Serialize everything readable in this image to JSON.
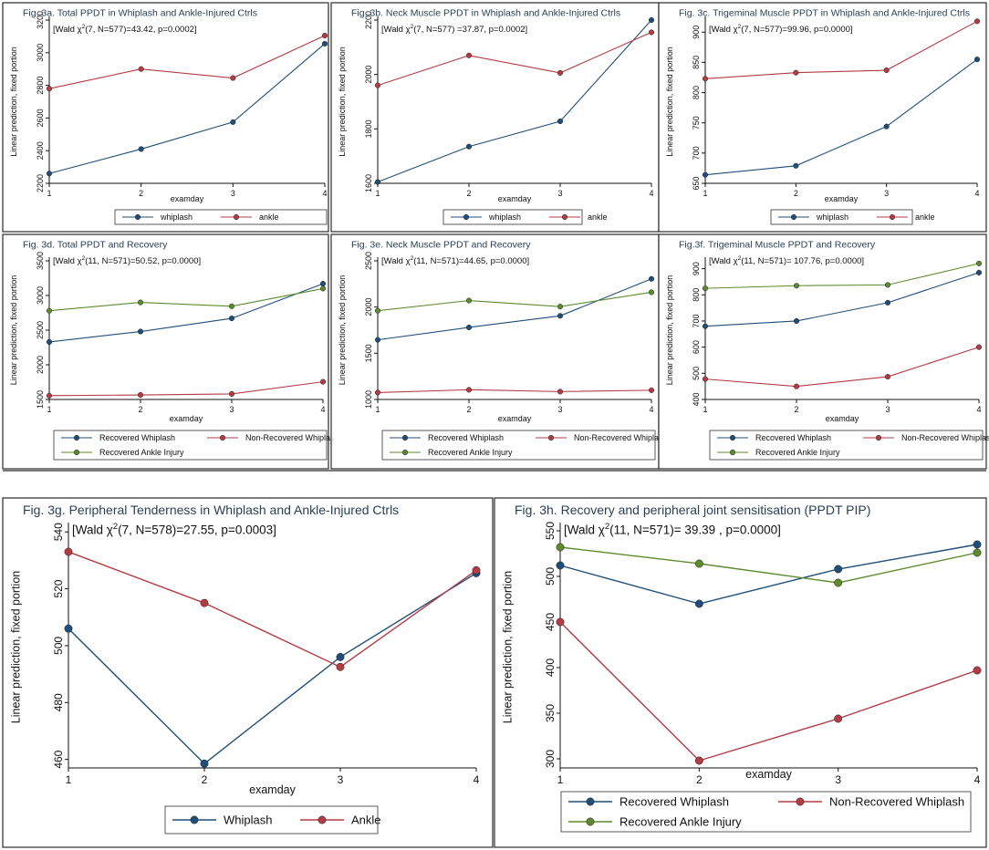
{
  "figure_colors": {
    "whiplash": "#1f4e79",
    "recovered_whiplash": "#1f4e79",
    "ankle": "#b33b44",
    "non_recovered_whiplash": "#b33b44",
    "recovered_ankle": "#5d8a2e"
  },
  "chart_data": [
    {
      "id": "3a",
      "type": "line",
      "title": "Fig. 3a. Total PPDT in Whiplash and Ankle-Injured Ctrls",
      "stat": {
        "pre": "[Wald χ",
        "sup": "2",
        "post": "(7, N=577)=43.42, p=0.0002]"
      },
      "xlabel": "examday",
      "ylabel": "Linear prediction, fixed portion",
      "x": [
        1,
        2,
        3,
        4
      ],
      "yticks": [
        "2200",
        "2400",
        "2600",
        "2800",
        "3000",
        "3200"
      ],
      "ylim": [
        2200,
        3200
      ],
      "series": [
        {
          "name": "whiplash",
          "color": "#1f4e79",
          "values": [
            2260,
            2410,
            2575,
            3055
          ]
        },
        {
          "name": "ankle",
          "color": "#b33b44",
          "values": [
            2780,
            2900,
            2845,
            3105
          ]
        }
      ]
    },
    {
      "id": "3b",
      "type": "line",
      "title": "Fig. 3b. Neck Muscle PPDT in Whiplash and Ankle-Injured Ctrls",
      "stat": {
        "pre": "[Wald χ",
        "sup": "2",
        "post": "(7, N=577) =37.87, p=0.0002]"
      },
      "xlabel": "examday",
      "ylabel": "Linear prediction, fixed portion",
      "x": [
        1,
        2,
        3,
        4
      ],
      "yticks": [
        "1600",
        "1800",
        "2000",
        "2200"
      ],
      "ylim": [
        1600,
        2200
      ],
      "series": [
        {
          "name": "whiplash",
          "color": "#1f4e79",
          "values": [
            1605,
            1735,
            1828,
            2200
          ]
        },
        {
          "name": "ankle",
          "color": "#b33b44",
          "values": [
            1960,
            2070,
            2006,
            2155
          ]
        }
      ]
    },
    {
      "id": "3c",
      "type": "line",
      "title": "Fig. 3c. Trigeminal Muscle PPDT in Whiplash and Ankle-Injured Ctrls",
      "stat": {
        "pre": "[Wald χ",
        "sup": "2",
        "post": "(7, N=577)=99.96, p=0.0000]"
      },
      "xlabel": "examday",
      "ylabel": "Linear prediction, fixed portion",
      "x": [
        1,
        2,
        3,
        4
      ],
      "yticks": [
        "650",
        "700",
        "750",
        "800",
        "850",
        "900"
      ],
      "ylim": [
        650,
        920
      ],
      "series": [
        {
          "name": "whiplash",
          "color": "#1f4e79",
          "values": [
            664,
            679,
            744,
            855
          ]
        },
        {
          "name": "ankle",
          "color": "#b33b44",
          "values": [
            823,
            833,
            837,
            918
          ]
        }
      ]
    },
    {
      "id": "3d",
      "type": "line",
      "title": "Fig. 3d. Total PPDT and Recovery",
      "stat": {
        "pre": "[Wald χ",
        "sup": "2",
        "post": "(11, N=571)=50.52, p=0.0000]"
      },
      "xlabel": "examday",
      "ylabel": "Linear prediction, fixed portion",
      "x": [
        1,
        2,
        3,
        4
      ],
      "yticks": [
        "1500",
        "2000",
        "2500",
        "3000",
        "3500"
      ],
      "ylim": [
        1500,
        3500
      ],
      "series": [
        {
          "name": "Recovered Whiplash",
          "color": "#1f4e79",
          "values": [
            2330,
            2480,
            2670,
            3170
          ]
        },
        {
          "name": "Non-Recovered Whiplash",
          "color": "#b33b44",
          "values": [
            1555,
            1565,
            1580,
            1755
          ]
        },
        {
          "name": "Recovered Ankle Injury",
          "color": "#5d8a2e",
          "values": [
            2780,
            2900,
            2845,
            3100
          ]
        }
      ]
    },
    {
      "id": "3e",
      "type": "line",
      "title": "Fig. 3e. Neck Muscle PPDT and Recovery",
      "stat": {
        "pre": "[Wald χ",
        "sup": "2",
        "post": "(11, N=571)=44.65, p=0.0000]"
      },
      "xlabel": "examday",
      "ylabel": "Linear prediction, fixed portion",
      "x": [
        1,
        2,
        3,
        4
      ],
      "yticks": [
        "1000",
        "1500",
        "2000",
        "2500"
      ],
      "ylim": [
        1000,
        2500
      ],
      "series": [
        {
          "name": "Recovered Whiplash",
          "color": "#1f4e79",
          "values": [
            1645,
            1780,
            1905,
            2305
          ]
        },
        {
          "name": "Non-Recovered Whiplash",
          "color": "#b33b44",
          "values": [
            1075,
            1105,
            1085,
            1100
          ]
        },
        {
          "name": "Recovered Ankle Injury",
          "color": "#5d8a2e",
          "values": [
            1960,
            2070,
            2005,
            2160
          ]
        }
      ]
    },
    {
      "id": "3f",
      "type": "line",
      "title": "Fig.3f. Trigeminal Muscle PPDT and Recovery",
      "stat": {
        "pre": "[Wald χ",
        "sup": "2",
        "post": "(11, N=571)= 107.76, p=0.0000]"
      },
      "xlabel": "examday",
      "ylabel": "Linear prediction, fixed portion",
      "x": [
        1,
        2,
        3,
        4
      ],
      "yticks": [
        "400",
        "500",
        "600",
        "700",
        "800",
        "900"
      ],
      "ylim": [
        400,
        930
      ],
      "series": [
        {
          "name": "Recovered Whiplash",
          "color": "#1f4e79",
          "values": [
            680,
            700,
            770,
            885
          ]
        },
        {
          "name": "Non-Recovered Whiplash",
          "color": "#b33b44",
          "values": [
            478,
            450,
            487,
            600
          ]
        },
        {
          "name": "Recovered Ankle Injury",
          "color": "#5d8a2e",
          "values": [
            825,
            835,
            838,
            920
          ]
        }
      ]
    },
    {
      "id": "3g",
      "type": "line",
      "title": "Fig. 3g. Peripheral Tenderness in Whiplash and Ankle-Injured Ctrls",
      "stat": {
        "pre": "[Wald χ",
        "sup": "2",
        "post": "(7, N=578)=27.55, p=0.0003]"
      },
      "xlabel": "examday",
      "ylabel": "Linear prediction, fixed portion",
      "x": [
        1,
        2,
        3,
        4
      ],
      "yticks": [
        "460",
        "480",
        "500",
        "520",
        "540"
      ],
      "ylim": [
        457,
        542
      ],
      "series": [
        {
          "name": "Whiplash",
          "color": "#1f4e79",
          "values": [
            506,
            458.5,
            496,
            525.5
          ]
        },
        {
          "name": "Ankle",
          "color": "#b33b44",
          "values": [
            533,
            515,
            492.5,
            526.5
          ]
        }
      ]
    },
    {
      "id": "3h",
      "type": "line",
      "title": "Fig. 3h. Recovery and peripheral joint sensitisation (PPDT PIP)",
      "stat": {
        "pre": "[Wald χ",
        "sup": "2",
        "post": "(11, N=571)= 39.39 , p=0.0000]"
      },
      "xlabel": "examday",
      "ylabel": "Linear prediction, fixed portion",
      "x": [
        1,
        2,
        3,
        4
      ],
      "yticks": [
        "300",
        "350",
        "400",
        "450",
        "500",
        "550"
      ],
      "ylim": [
        290,
        555
      ],
      "series": [
        {
          "name": "Recovered Whiplash",
          "color": "#1f4e79",
          "values": [
            512,
            470,
            508,
            535
          ]
        },
        {
          "name": "Non-Recovered Whiplash",
          "color": "#b33b44",
          "values": [
            450,
            298,
            344,
            397
          ]
        },
        {
          "name": "Recovered Ankle Injury",
          "color": "#5d8a2e",
          "values": [
            532,
            514,
            493,
            526
          ]
        }
      ]
    }
  ]
}
